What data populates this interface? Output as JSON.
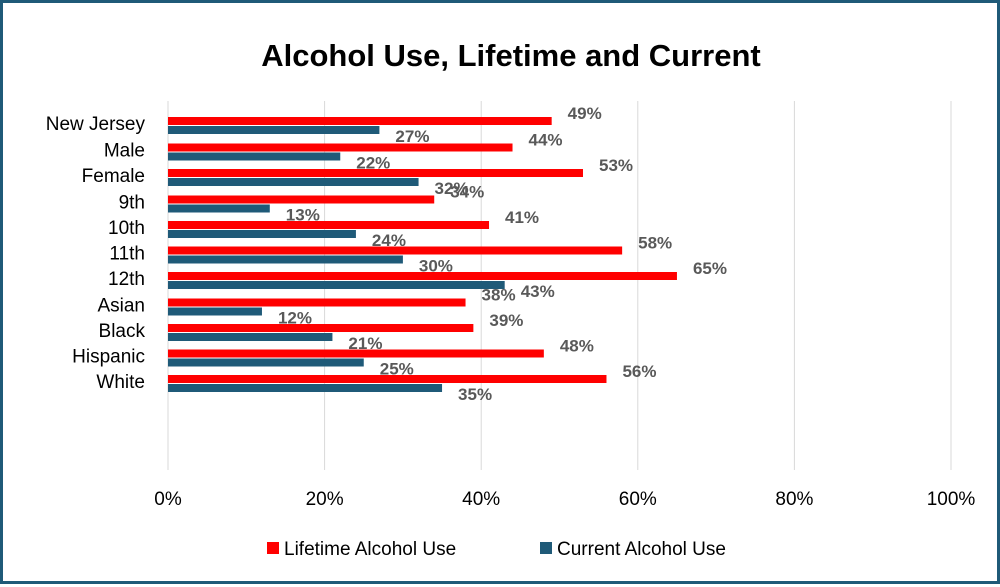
{
  "chart_data": {
    "type": "bar",
    "orientation": "horizontal",
    "title": "Alcohol Use, Lifetime and Current",
    "xlabel": "",
    "ylabel": "",
    "xlim": [
      0,
      100
    ],
    "x_ticks": [
      "0%",
      "20%",
      "40%",
      "60%",
      "80%",
      "100%"
    ],
    "grid": true,
    "legend_position": "bottom",
    "categories": [
      "New Jersey",
      "Male",
      "Female",
      "9th",
      "10th",
      "11th",
      "12th",
      "Asian",
      "Black",
      "Hispanic",
      "White"
    ],
    "groups": [
      [
        "New Jersey"
      ],
      [
        "Male",
        "Female"
      ],
      [
        "9th",
        "10th",
        "11th",
        "12th"
      ],
      [
        "Asian",
        "Black",
        "Hispanic",
        "White"
      ]
    ],
    "series": [
      {
        "name": "Lifetime Alcohol Use",
        "color": "#ff0000",
        "values": [
          49,
          44,
          53,
          34,
          41,
          58,
          65,
          38,
          39,
          48,
          56
        ],
        "labels": [
          "49%",
          "44%",
          "53%",
          "34%",
          "41%",
          "58%",
          "65%",
          "38%",
          "39%",
          "48%",
          "56%"
        ]
      },
      {
        "name": "Current Alcohol Use",
        "color": "#1f5a78",
        "values": [
          27,
          22,
          32,
          13,
          24,
          30,
          43,
          12,
          21,
          25,
          35
        ],
        "labels": [
          "27%",
          "22%",
          "32%",
          "13%",
          "24%",
          "30%",
          "43%",
          "12%",
          "21%",
          "25%",
          "35%"
        ]
      }
    ]
  }
}
